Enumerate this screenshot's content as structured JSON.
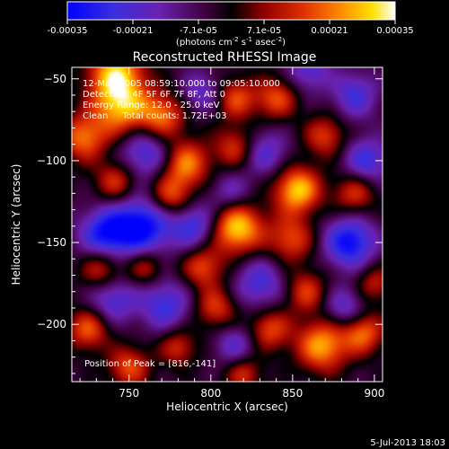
{
  "colorbar": {
    "tick_labels": [
      "-0.00035",
      "-0.00021",
      "-7.1e-05",
      "7.1e-05",
      "0.00021",
      "0.00035"
    ],
    "unit_prefix": "(photons cm",
    "unit_exp1": "-2",
    "unit_mid": " s",
    "unit_exp2": "-1",
    "unit_mid2": " asec",
    "unit_exp3": "-2",
    "unit_suffix": ")",
    "colors": [
      "#0000ff",
      "#6020d0",
      "#600060",
      "#000000",
      "#800000",
      "#e03000",
      "#ff9000",
      "#ffe000",
      "#ffffff"
    ]
  },
  "plot": {
    "title": "Reconstructed RHESSI Image",
    "info_lines": [
      "12-May-2005 08:59:10.000 to 09:05:10.000",
      "Detectors: 4F 5F 6F 7F 8F, Att 0",
      "Energy Range: 12.0 - 25.0 keV",
      "Clean     Total counts: 1.72E+03"
    ],
    "peak_text": "Position of Peak = [816,-141]",
    "xlabel": "Heliocentric X (arcsec)",
    "ylabel": "Heliocentric Y (arcsec)",
    "footer_date": "5-Jul-2013 18:03"
  },
  "chart_data": {
    "type": "heatmap",
    "title": "Reconstructed RHESSI Image",
    "xlabel": "Heliocentric X (arcsec)",
    "ylabel": "Heliocentric Y (arcsec)",
    "xlim": [
      715,
      905
    ],
    "ylim": [
      -235,
      -43
    ],
    "xticks": [
      750,
      800,
      850,
      900
    ],
    "yticks": [
      -50,
      -100,
      -150,
      -200
    ],
    "colorbar_range": [
      -0.00035,
      0.00035
    ],
    "peak": [
      816,
      -141
    ],
    "blobs": [
      {
        "x": 816,
        "y": -141,
        "w": 1.0,
        "r": 11
      },
      {
        "x": 853,
        "y": -118,
        "w": 0.95,
        "r": 10
      },
      {
        "x": 849,
        "y": -148,
        "w": 0.6,
        "r": 10
      },
      {
        "x": 742,
        "y": -47,
        "w": 0.9,
        "r": 12
      },
      {
        "x": 745,
        "y": -68,
        "w": 0.8,
        "r": 12
      },
      {
        "x": 722,
        "y": -86,
        "w": 0.7,
        "r": 10
      },
      {
        "x": 770,
        "y": -73,
        "w": 0.7,
        "r": 10
      },
      {
        "x": 785,
        "y": -102,
        "w": 0.75,
        "r": 10
      },
      {
        "x": 775,
        "y": -122,
        "w": 0.65,
        "r": 9
      },
      {
        "x": 742,
        "y": -113,
        "w": 0.55,
        "r": 9
      },
      {
        "x": 733,
        "y": -166,
        "w": 0.55,
        "r": 9
      },
      {
        "x": 760,
        "y": -165,
        "w": 0.5,
        "r": 8
      },
      {
        "x": 795,
        "y": -165,
        "w": 0.6,
        "r": 9
      },
      {
        "x": 815,
        "y": -92,
        "w": 0.55,
        "r": 9
      },
      {
        "x": 815,
        "y": -62,
        "w": 0.6,
        "r": 9
      },
      {
        "x": 840,
        "y": -62,
        "w": 0.6,
        "r": 9
      },
      {
        "x": 870,
        "y": -85,
        "w": 0.55,
        "r": 9
      },
      {
        "x": 888,
        "y": -120,
        "w": 0.55,
        "r": 9
      },
      {
        "x": 858,
        "y": -180,
        "w": 0.55,
        "r": 9
      },
      {
        "x": 803,
        "y": -190,
        "w": 0.55,
        "r": 9
      },
      {
        "x": 836,
        "y": -203,
        "w": 0.6,
        "r": 9
      },
      {
        "x": 868,
        "y": -213,
        "w": 0.85,
        "r": 11
      },
      {
        "x": 893,
        "y": -205,
        "w": 0.7,
        "r": 9
      },
      {
        "x": 725,
        "y": -203,
        "w": 0.65,
        "r": 9
      },
      {
        "x": 750,
        "y": -226,
        "w": 0.6,
        "r": 9
      },
      {
        "x": 780,
        "y": -214,
        "w": 0.5,
        "r": 8
      },
      {
        "x": 820,
        "y": -230,
        "w": 0.5,
        "r": 8
      },
      {
        "x": 900,
        "y": -175,
        "w": 0.45,
        "r": 8
      },
      {
        "x": 760,
        "y": -95,
        "w": -0.6,
        "r": 11
      },
      {
        "x": 758,
        "y": -140,
        "w": -0.9,
        "r": 13
      },
      {
        "x": 735,
        "y": -145,
        "w": -0.75,
        "r": 11
      },
      {
        "x": 790,
        "y": -140,
        "w": -0.6,
        "r": 10
      },
      {
        "x": 833,
        "y": -95,
        "w": -0.5,
        "r": 10
      },
      {
        "x": 885,
        "y": -150,
        "w": -0.85,
        "r": 11
      },
      {
        "x": 895,
        "y": -100,
        "w": -0.6,
        "r": 10
      },
      {
        "x": 888,
        "y": -60,
        "w": -0.55,
        "r": 10
      },
      {
        "x": 860,
        "y": -45,
        "w": -0.5,
        "r": 9
      },
      {
        "x": 772,
        "y": -188,
        "w": -0.6,
        "r": 11
      },
      {
        "x": 740,
        "y": -185,
        "w": -0.55,
        "r": 10
      },
      {
        "x": 830,
        "y": -175,
        "w": -0.55,
        "r": 11
      },
      {
        "x": 812,
        "y": -120,
        "w": -0.4,
        "r": 9
      },
      {
        "x": 795,
        "y": -58,
        "w": -0.45,
        "r": 9
      },
      {
        "x": 815,
        "y": -213,
        "w": -0.45,
        "r": 9
      },
      {
        "x": 882,
        "y": -190,
        "w": -0.5,
        "r": 9
      }
    ]
  }
}
